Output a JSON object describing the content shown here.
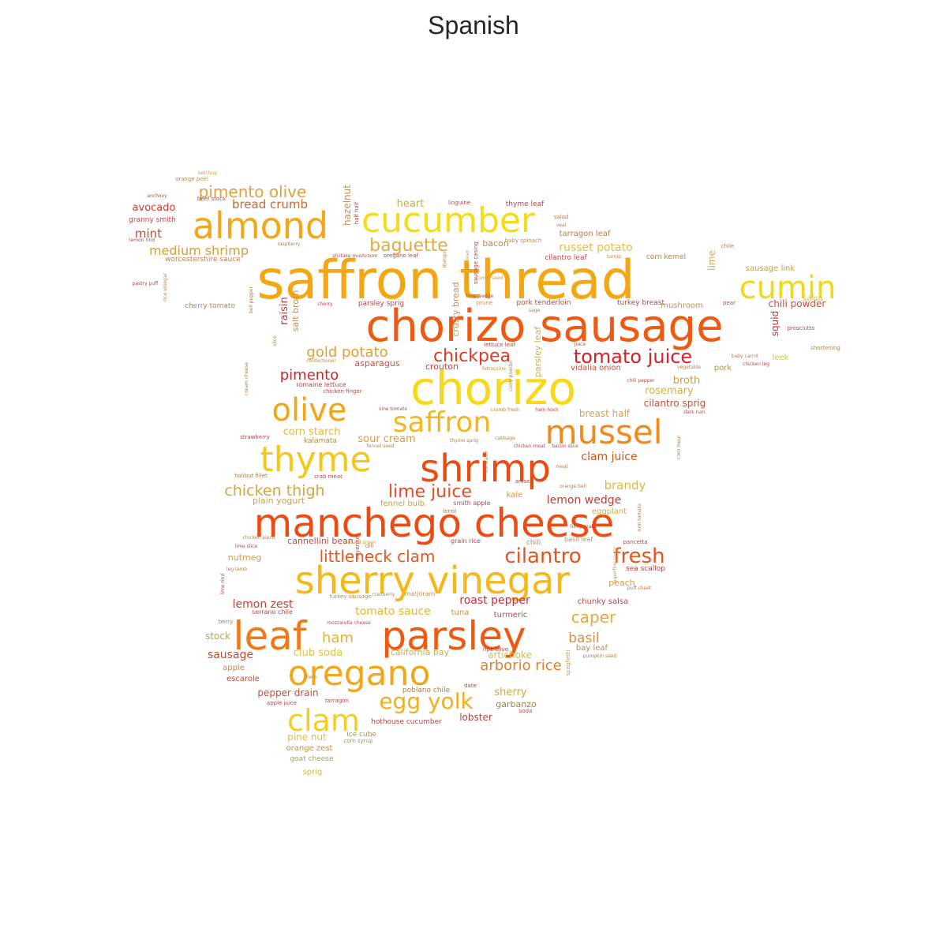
{
  "title": "Spanish",
  "words": [
    {
      "t": "saffron thread",
      "s": 68,
      "c": "#f4a714"
    },
    {
      "t": "chorizo sausage",
      "s": 56,
      "c": "#ef5a12"
    },
    {
      "t": "chorizo",
      "s": 58,
      "c": "#f7d81a"
    },
    {
      "t": "manchego cheese",
      "s": 50,
      "c": "#ee4a12"
    },
    {
      "t": "sherry vinegar",
      "s": 48,
      "c": "#f4b81c"
    },
    {
      "t": "leaf",
      "s": 50,
      "c": "#f07a18"
    },
    {
      "t": "parsley",
      "s": 50,
      "c": "#ee5a10"
    },
    {
      "t": "almond",
      "s": 46,
      "c": "#f0a818"
    },
    {
      "t": "cucumber",
      "s": 44,
      "c": "#f4dc1a"
    },
    {
      "t": "shrimp",
      "s": 48,
      "c": "#ec4a10"
    },
    {
      "t": "thyme",
      "s": 44,
      "c": "#f3c81a"
    },
    {
      "t": "oregano",
      "s": 44,
      "c": "#f0a81a"
    },
    {
      "t": "olive",
      "s": 40,
      "c": "#f3a418"
    },
    {
      "t": "mussel",
      "s": 42,
      "c": "#f28a18"
    },
    {
      "t": "saffron",
      "s": 36,
      "c": "#f2b820"
    },
    {
      "t": "cumin",
      "s": 40,
      "c": "#f0d820"
    },
    {
      "t": "clam",
      "s": 38,
      "c": "#f4d01e"
    },
    {
      "t": "egg yolk",
      "s": 28,
      "c": "#f0b020"
    },
    {
      "t": "cilantro",
      "s": 26,
      "c": "#e4541c"
    },
    {
      "t": "fresh",
      "s": 26,
      "c": "#e4541c"
    },
    {
      "t": "baguette",
      "s": 22,
      "c": "#e0ac40"
    },
    {
      "t": "tomato juice",
      "s": 24,
      "c": "#d8202a"
    },
    {
      "t": "chickpea",
      "s": 22,
      "c": "#dc3c24"
    },
    {
      "t": "lime juice",
      "s": 22,
      "c": "#e84c1c"
    },
    {
      "t": "pimento olive",
      "s": 20,
      "c": "#e0a040"
    },
    {
      "t": "littleneck clam",
      "s": 20,
      "c": "#e85820"
    },
    {
      "t": "chicken thigh",
      "s": 19,
      "c": "#d8a440"
    },
    {
      "t": "gold potato",
      "s": 18,
      "c": "#e0a030"
    },
    {
      "t": "pimento",
      "s": 18,
      "c": "#c82830"
    },
    {
      "t": "caper",
      "s": 20,
      "c": "#e8a838"
    },
    {
      "t": "ham",
      "s": 18,
      "c": "#e4b030"
    },
    {
      "t": "arborio rice",
      "s": 18,
      "c": "#dc8030"
    },
    {
      "t": "basil",
      "s": 17,
      "c": "#d09040"
    },
    {
      "t": "tomato sauce",
      "s": 14,
      "c": "#e0b830"
    },
    {
      "t": "lemon zest",
      "s": 14,
      "c": "#c83c30"
    },
    {
      "t": "roast pepper",
      "s": 14,
      "c": "#c8303c"
    },
    {
      "t": "lemon wedge",
      "s": 14,
      "c": "#c83c30"
    },
    {
      "t": "clam juice",
      "s": 14,
      "c": "#c85a20"
    },
    {
      "t": "brandy",
      "s": 15,
      "c": "#e0b838"
    },
    {
      "t": "sour cream",
      "s": 13,
      "c": "#d0a040"
    },
    {
      "t": "corn starch",
      "s": 13,
      "c": "#e0b840"
    },
    {
      "t": "medium shrimp",
      "s": 16,
      "c": "#d0a040"
    },
    {
      "t": "bread crumb",
      "s": 15,
      "c": "#c86838"
    },
    {
      "t": "avocado",
      "s": 13,
      "c": "#c84030"
    },
    {
      "t": "mint",
      "s": 15,
      "c": "#c84838"
    },
    {
      "t": "russet potato",
      "s": 14,
      "c": "#e0c040"
    },
    {
      "t": "heart",
      "s": 13,
      "c": "#d0a848"
    },
    {
      "t": "chili powder",
      "s": 12,
      "c": "#c05040"
    },
    {
      "t": "broth",
      "s": 13,
      "c": "#c8a040"
    },
    {
      "t": "rosemary",
      "s": 13,
      "c": "#d0b040"
    },
    {
      "t": "cilantro sprig",
      "s": 12,
      "c": "#c05040"
    },
    {
      "t": "breast half",
      "s": 12,
      "c": "#d0a050"
    },
    {
      "t": "crouton",
      "s": 11,
      "c": "#c04848"
    },
    {
      "t": "asparagus",
      "s": 11,
      "c": "#c05048"
    },
    {
      "t": "sausage",
      "s": 14,
      "c": "#c84830"
    },
    {
      "t": "stock",
      "s": 12,
      "c": "#c0a050"
    },
    {
      "t": "club soda",
      "s": 13,
      "c": "#e0c040"
    },
    {
      "t": "california bay",
      "s": 11,
      "c": "#c0b050"
    },
    {
      "t": "artichoke",
      "s": 12,
      "c": "#d0c040"
    },
    {
      "t": "sherry",
      "s": 13,
      "c": "#d0a840"
    },
    {
      "t": "garbanzo",
      "s": 11,
      "c": "#a08050"
    },
    {
      "t": "lobster",
      "s": 12,
      "c": "#b04848"
    },
    {
      "t": "pepper drain",
      "s": 12,
      "c": "#c05040"
    },
    {
      "t": "pine nut",
      "s": 12,
      "c": "#e0c040"
    },
    {
      "t": "orange zest",
      "s": 10,
      "c": "#c89050"
    },
    {
      "t": "goat cheese",
      "s": 9,
      "c": "#b0a050"
    },
    {
      "t": "sprig",
      "s": 10,
      "c": "#d0b850"
    },
    {
      "t": "hothouse cucumber",
      "s": 9,
      "c": "#b04848"
    },
    {
      "t": "ice cube",
      "s": 9,
      "c": "#a09060"
    },
    {
      "t": "corn syrup",
      "s": 7,
      "c": "#a09060"
    },
    {
      "t": "poblano chile",
      "s": 9,
      "c": "#a08050"
    },
    {
      "t": "fennel bulb",
      "s": 10,
      "c": "#c0a050"
    },
    {
      "t": "plain yogurt",
      "s": 11,
      "c": "#d0a050"
    },
    {
      "t": "cannellini bean",
      "s": 11,
      "c": "#c04848"
    },
    {
      "t": "nutmeg",
      "s": 11,
      "c": "#c0a050"
    },
    {
      "t": "kale",
      "s": 10,
      "c": "#d09030"
    },
    {
      "t": "eggplant",
      "s": 10,
      "c": "#c0b050"
    },
    {
      "t": "peach",
      "s": 11,
      "c": "#d0a040"
    },
    {
      "t": "chunky salsa",
      "s": 10,
      "c": "#b04848"
    },
    {
      "t": "bay leaf",
      "s": 10,
      "c": "#c08850"
    },
    {
      "t": "turmeric",
      "s": 10,
      "c": "#c04848"
    },
    {
      "t": "tuna",
      "s": 10,
      "c": "#c09050"
    },
    {
      "t": "escarole",
      "s": 10,
      "c": "#c04838"
    },
    {
      "t": "apple",
      "s": 10,
      "c": "#c08858"
    },
    {
      "t": "granny smith",
      "s": 9,
      "c": "#c04848"
    },
    {
      "t": "worcestershire sauce",
      "s": 9,
      "c": "#c08050"
    },
    {
      "t": "cherry tomato",
      "s": 9,
      "c": "#c08050"
    },
    {
      "t": "salt broth",
      "s": 11,
      "c": "#c09050"
    },
    {
      "t": "raisin",
      "s": 13,
      "c": "#b04040"
    },
    {
      "t": "hazelnut",
      "s": 12,
      "c": "#c09050"
    },
    {
      "t": "bacon",
      "s": 11,
      "c": "#c08850"
    },
    {
      "t": "tarragon leaf",
      "s": 10,
      "c": "#c07850"
    },
    {
      "t": "thyme leaf",
      "s": 9,
      "c": "#b04848"
    },
    {
      "t": "cilantro leaf",
      "s": 9,
      "c": "#c04848"
    },
    {
      "t": "corn kernel",
      "s": 9,
      "c": "#b08050"
    },
    {
      "t": "sausage link",
      "s": 10,
      "c": "#c09850"
    },
    {
      "t": "lime",
      "s": 12,
      "c": "#d0a850"
    },
    {
      "t": "mushroom",
      "s": 10,
      "c": "#c09050"
    },
    {
      "t": "turkey breast",
      "s": 9,
      "c": "#b04848"
    },
    {
      "t": "pork tenderloin",
      "s": 9,
      "c": "#b04848"
    },
    {
      "t": "parsley sprig",
      "s": 9,
      "c": "#b04848"
    },
    {
      "t": "salsa",
      "s": 10,
      "c": "#d0c050"
    },
    {
      "t": "leek",
      "s": 10,
      "c": "#d0c050"
    },
    {
      "t": "pork",
      "s": 10,
      "c": "#c09050"
    },
    {
      "t": "squid",
      "s": 12,
      "c": "#b03838"
    },
    {
      "t": "vidalia onion",
      "s": 10,
      "c": "#c05040"
    },
    {
      "t": "parsley leaf",
      "s": 11,
      "c": "#d0b050"
    },
    {
      "t": "crusty bread",
      "s": 11,
      "c": "#c09050"
    },
    {
      "t": "lettuce leaf",
      "s": 7,
      "c": "#b04848"
    },
    {
      "t": "romaine lettuce",
      "s": 8,
      "c": "#b04848"
    },
    {
      "t": "chicken finger",
      "s": 7,
      "c": "#c04848"
    },
    {
      "t": "kalamata",
      "s": 9,
      "c": "#a09050"
    },
    {
      "t": "halibut fillet",
      "s": 7,
      "c": "#a08050"
    },
    {
      "t": "crab meat",
      "s": 7,
      "c": "#b04848"
    },
    {
      "t": "smith apple",
      "s": 8,
      "c": "#c04848"
    },
    {
      "t": "lentil",
      "s": 7,
      "c": "#a08050"
    },
    {
      "t": "grain rice",
      "s": 8,
      "c": "#b04848"
    },
    {
      "t": "chili",
      "s": 9,
      "c": "#c09050"
    },
    {
      "t": "basil leaf",
      "s": 8,
      "c": "#c09050"
    },
    {
      "t": "pancetta",
      "s": 7,
      "c": "#b04848"
    },
    {
      "t": "sea scallop",
      "s": 9,
      "c": "#b04848"
    },
    {
      "t": "marjoram",
      "s": 8,
      "c": "#c09050"
    },
    {
      "t": "serrano chile",
      "s": 8,
      "c": "#c04848"
    },
    {
      "t": "turkey sausage",
      "s": 7,
      "c": "#b09050"
    },
    {
      "t": "ripe olive",
      "s": 7,
      "c": "#b04848"
    },
    {
      "t": "date",
      "s": 7,
      "c": "#b04848"
    },
    {
      "t": "tarragon",
      "s": 7,
      "c": "#b04848"
    },
    {
      "t": "apple juice",
      "s": 7,
      "c": "#b04848"
    },
    {
      "t": "herb",
      "s": 6,
      "c": "#b08050"
    },
    {
      "t": "soda",
      "s": 7,
      "c": "#b04848"
    },
    {
      "t": "pumpkin seed",
      "s": 6,
      "c": "#b08050"
    },
    {
      "t": "puff sheet",
      "s": 6,
      "c": "#b08050"
    },
    {
      "t": "collard green",
      "s": 6,
      "c": "#c0a050"
    },
    {
      "t": "dill",
      "s": 7,
      "c": "#b08050"
    },
    {
      "t": "lime slice",
      "s": 6,
      "c": "#b04848"
    },
    {
      "t": "chicken piece",
      "s": 6,
      "c": "#b08050"
    },
    {
      "t": "leg lamb",
      "s": 6,
      "c": "#b08050"
    },
    {
      "t": "berry",
      "s": 7,
      "c": "#b08050"
    },
    {
      "t": "ketchup",
      "s": 6,
      "c": "#c0a050"
    },
    {
      "t": "orange peel",
      "s": 7,
      "c": "#b09050"
    },
    {
      "t": "anchovy",
      "s": 6,
      "c": "#b04848"
    },
    {
      "t": "beef stock",
      "s": 7,
      "c": "#b04848"
    },
    {
      "t": "lemon rind",
      "s": 6,
      "c": "#b04848"
    },
    {
      "t": "pastry puff",
      "s": 6,
      "c": "#b04848"
    },
    {
      "t": "raspberry",
      "s": 6,
      "c": "#b08050"
    },
    {
      "t": "shiitake mushroom",
      "s": 6,
      "c": "#b04848"
    },
    {
      "t": "oregano leaf",
      "s": 7,
      "c": "#b04848"
    },
    {
      "t": "linguine",
      "s": 7,
      "c": "#b04848"
    },
    {
      "t": "baby spinach",
      "s": 7,
      "c": "#b09050"
    },
    {
      "t": "salad",
      "s": 7,
      "c": "#b08050"
    },
    {
      "t": "veal",
      "s": 6,
      "c": "#b08050"
    },
    {
      "t": "turnip",
      "s": 6,
      "c": "#b08050"
    },
    {
      "t": "chile",
      "s": 7,
      "c": "#b08050"
    },
    {
      "t": "pear",
      "s": 7,
      "c": "#b04848"
    },
    {
      "t": "prosciutto",
      "s": 7,
      "c": "#b04848"
    },
    {
      "t": "shortening",
      "s": 7,
      "c": "#b08050"
    },
    {
      "t": "baby carrot",
      "s": 6,
      "c": "#b08050"
    },
    {
      "t": "chicken leg",
      "s": 6,
      "c": "#b04848"
    },
    {
      "t": "vegetable",
      "s": 6,
      "c": "#b08050"
    },
    {
      "t": "chili pepper",
      "s": 6,
      "c": "#b04848"
    },
    {
      "t": "dark rum",
      "s": 6,
      "c": "#b04848"
    },
    {
      "t": "cherry",
      "s": 6,
      "c": "#b04848"
    },
    {
      "t": "cumin seed",
      "s": 6,
      "c": "#c0a050"
    },
    {
      "t": "prune",
      "s": 7,
      "c": "#c09050"
    },
    {
      "t": "lime wedge",
      "s": 6,
      "c": "#b04848"
    },
    {
      "t": "sage",
      "s": 6,
      "c": "#b08050"
    },
    {
      "t": "juice",
      "s": 6,
      "c": "#b04848"
    },
    {
      "t": "fettuccine",
      "s": 6,
      "c": "#b09050"
    },
    {
      "t": "confectioner",
      "s": 6,
      "c": "#b09050"
    },
    {
      "t": "vine tomato",
      "s": 6,
      "c": "#b04848"
    },
    {
      "t": "crumb fresh",
      "s": 6,
      "c": "#b08050"
    },
    {
      "t": "ham hock",
      "s": 6,
      "c": "#b04848"
    },
    {
      "t": "strawberry",
      "s": 7,
      "c": "#b04848"
    },
    {
      "t": "fennel seed",
      "s": 6,
      "c": "#b08050"
    },
    {
      "t": "thyme sprig",
      "s": 6,
      "c": "#b08050"
    },
    {
      "t": "cabbage",
      "s": 6,
      "c": "#b08050"
    },
    {
      "t": "chicken meat",
      "s": 6,
      "c": "#b04848"
    },
    {
      "t": "bacon slice",
      "s": 6,
      "c": "#b04848"
    },
    {
      "t": "meat",
      "s": 6,
      "c": "#b08050"
    },
    {
      "t": "anise",
      "s": 7,
      "c": "#b04848"
    },
    {
      "t": "orange bell",
      "s": 6,
      "c": "#b08050"
    },
    {
      "t": "lump crab",
      "s": 6,
      "c": "#b04848"
    },
    {
      "t": "mozzarella cheese",
      "s": 6,
      "c": "#b04848"
    },
    {
      "t": "slice",
      "s": 6,
      "c": "#b08050"
    },
    {
      "t": "cream cheese",
      "s": 6,
      "c": "#b08050"
    },
    {
      "t": "curry powder",
      "s": 6,
      "c": "#b08050"
    },
    {
      "t": "mango",
      "s": 6,
      "c": "#b08050"
    },
    {
      "t": "vanilla bean",
      "s": 6,
      "c": "#c0a050"
    },
    {
      "t": "sausage casing",
      "s": 7,
      "c": "#b04848"
    },
    {
      "t": "half half",
      "s": 7,
      "c": "#b04848"
    },
    {
      "t": "bell pepper",
      "s": 6,
      "c": "#b08050"
    },
    {
      "t": "rice vinegar",
      "s": 6,
      "c": "#b08050"
    },
    {
      "t": "cayenne",
      "s": 7,
      "c": "#b04848"
    },
    {
      "t": "lime rind",
      "s": 6,
      "c": "#b04848"
    },
    {
      "t": "spaghetti",
      "s": 7,
      "c": "#c0a050"
    },
    {
      "t": "superfine sugar",
      "s": 6,
      "c": "#c0a050"
    },
    {
      "t": "rum tomato",
      "s": 6,
      "c": "#b08050"
    },
    {
      "t": "corn meal",
      "s": 6,
      "c": "#b08050"
    },
    {
      "t": "ice water",
      "s": 6,
      "c": "#b08050"
    },
    {
      "t": "cranberry",
      "s": 6,
      "c": "#b08050"
    },
    {
      "t": "orzo",
      "s": 6,
      "c": "#c0a050"
    }
  ]
}
